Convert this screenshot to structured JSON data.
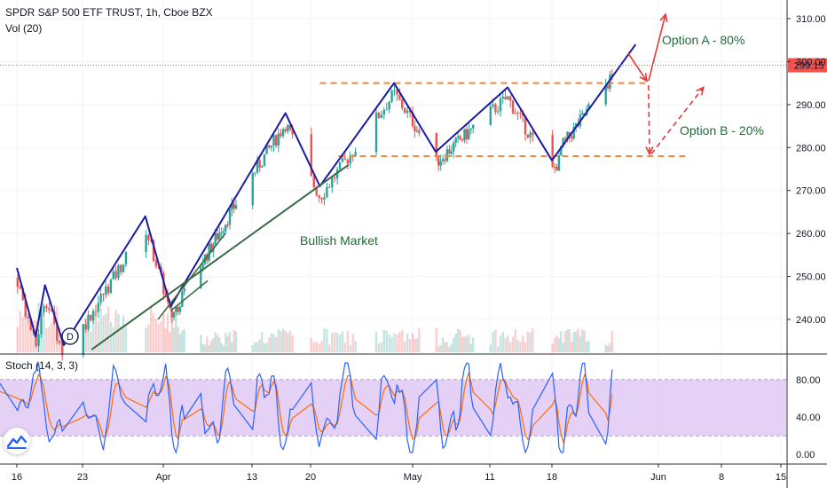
{
  "header": {
    "symbol_title": "SPDR S&P 500 ETF TRUST, 1h, Cboe BZX",
    "volume_label": "Vol (20)",
    "stoch_label": "Stoch (14, 3, 3)"
  },
  "colors": {
    "up": "#26a69a",
    "down": "#ef5350",
    "wave": "#1a1aa6",
    "trend": "#3a6b47",
    "level": "#f0883e",
    "arrow_red": "#e53935",
    "stoch_band": "#e1c8f5",
    "stoch_k": "#2962ff",
    "stoch_d": "#ff6d00",
    "price_tag": "#ef5350",
    "annotation": "#1e6b3a"
  },
  "chart_data": [
    {
      "type": "line",
      "name": "price-panel",
      "title": "SPDR S&P 500 ETF TRUST, 1h, Cboe BZX",
      "ylim": [
        234,
        313
      ],
      "yticks": [
        240,
        250,
        260,
        270,
        280,
        290,
        300,
        310
      ],
      "ytick_labels": [
        "240.00",
        "250.00",
        "260.00",
        "270.00",
        "280.00",
        "290.00",
        "300.00",
        "310.00"
      ],
      "xticks": [
        "16",
        "23",
        "Apr",
        "13",
        "20",
        "May",
        "11",
        "18",
        "Jun",
        "8",
        "15"
      ],
      "last_price": 299.15,
      "last_price_label": "299.15",
      "wave_path": [
        {
          "x": "Mar 16",
          "y": 252
        },
        {
          "x": "Mar 18",
          "y": 236
        },
        {
          "x": "Mar 19",
          "y": 248
        },
        {
          "x": "Mar 21",
          "y": 234
        },
        {
          "x": "Mar 30",
          "y": 264
        },
        {
          "x": "Apr 2",
          "y": 243
        },
        {
          "x": "Apr 17",
          "y": 288
        },
        {
          "x": "Apr 21",
          "y": 271
        },
        {
          "x": "Apr 29",
          "y": 295
        },
        {
          "x": "May 4",
          "y": 279
        },
        {
          "x": "May 13",
          "y": 294
        },
        {
          "x": "May 18",
          "y": 277
        },
        {
          "x": "May 29",
          "y": 304
        }
      ],
      "resistance_level": 295,
      "support_level": 278,
      "annotations": {
        "option_a": "Option A - 80%",
        "option_b": "Option B - 20%",
        "market": "Bullish Market"
      },
      "events": [
        {
          "label": "D"
        }
      ]
    },
    {
      "type": "line",
      "name": "stochastic-panel",
      "title": "Stoch (14, 3, 3)",
      "ylim": [
        -5,
        105
      ],
      "band": [
        20,
        80
      ],
      "yticks": [
        0,
        40,
        80
      ],
      "ytick_labels": [
        "0.00",
        "40.00",
        "80.00"
      ]
    }
  ]
}
